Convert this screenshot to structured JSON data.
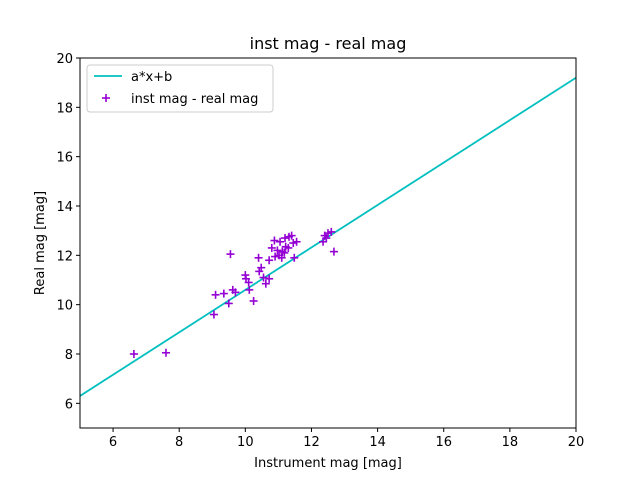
{
  "chart_data": {
    "type": "scatter",
    "title": "inst mag - real mag",
    "xlabel": "Instrument mag [mag]",
    "ylabel": "Real mag [mag]",
    "xlim": [
      5,
      20
    ],
    "ylim": [
      5,
      20
    ],
    "xticks": [
      6,
      8,
      10,
      12,
      14,
      16,
      18,
      20
    ],
    "yticks": [
      6,
      8,
      10,
      12,
      14,
      16,
      18,
      20
    ],
    "grid": false,
    "legend_position": "upper-left",
    "series": [
      {
        "name": "a*x+b",
        "kind": "line",
        "color": "#00bfbf",
        "x": [
          5,
          20
        ],
        "y": [
          6.3,
          19.2
        ]
      },
      {
        "name": "inst mag - real mag",
        "kind": "scatter",
        "marker": "plus",
        "color": "#9400d3",
        "points": [
          [
            6.63,
            8.0
          ],
          [
            7.6,
            8.05
          ],
          [
            9.05,
            9.6
          ],
          [
            9.1,
            10.4
          ],
          [
            9.35,
            10.45
          ],
          [
            9.5,
            10.05
          ],
          [
            9.55,
            12.05
          ],
          [
            9.62,
            10.6
          ],
          [
            9.7,
            10.5
          ],
          [
            10.0,
            11.2
          ],
          [
            10.02,
            11.05
          ],
          [
            10.1,
            10.9
          ],
          [
            10.12,
            10.6
          ],
          [
            10.25,
            10.15
          ],
          [
            10.4,
            11.9
          ],
          [
            10.42,
            11.35
          ],
          [
            10.48,
            11.5
          ],
          [
            10.55,
            11.1
          ],
          [
            10.62,
            10.85
          ],
          [
            10.72,
            11.05
          ],
          [
            10.72,
            11.8
          ],
          [
            10.8,
            12.3
          ],
          [
            10.88,
            12.6
          ],
          [
            10.9,
            11.95
          ],
          [
            10.97,
            12.2
          ],
          [
            11.02,
            12.0
          ],
          [
            11.05,
            12.55
          ],
          [
            11.1,
            11.9
          ],
          [
            11.12,
            12.15
          ],
          [
            11.18,
            12.1
          ],
          [
            11.2,
            12.7
          ],
          [
            11.22,
            12.35
          ],
          [
            11.3,
            12.3
          ],
          [
            11.32,
            12.75
          ],
          [
            11.4,
            12.8
          ],
          [
            11.45,
            12.5
          ],
          [
            11.48,
            11.9
          ],
          [
            11.55,
            12.55
          ],
          [
            12.35,
            12.55
          ],
          [
            12.4,
            12.8
          ],
          [
            12.45,
            12.7
          ],
          [
            12.5,
            12.9
          ],
          [
            12.6,
            12.95
          ],
          [
            12.68,
            12.15
          ]
        ]
      }
    ]
  }
}
